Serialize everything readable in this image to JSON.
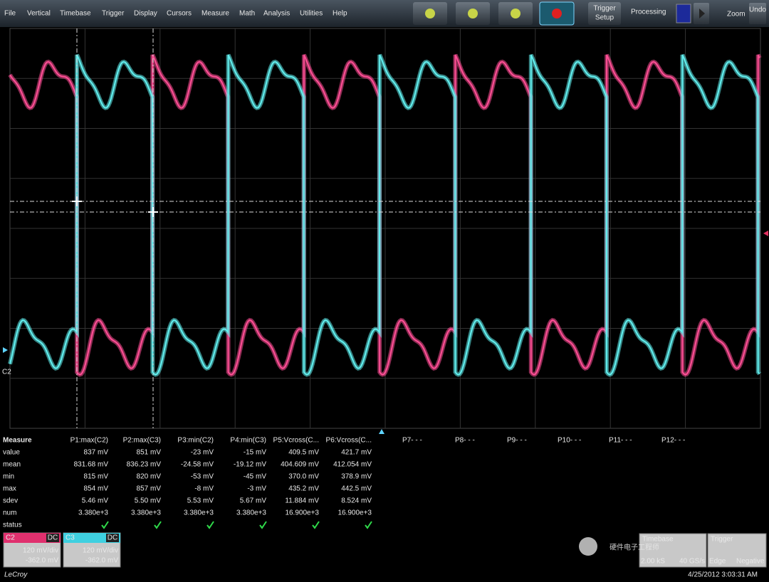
{
  "menu": [
    "File",
    "Vertical",
    "Timebase",
    "Trigger",
    "Display",
    "Cursors",
    "Measure",
    "Math",
    "Analysis",
    "Utilities",
    "Help"
  ],
  "toolbar": {
    "trigger_setup": [
      "Trigger",
      "Setup"
    ],
    "processing": "Processing",
    "zoom": "Zoom",
    "undo": "Undo"
  },
  "measure": {
    "header": [
      "Measure",
      "P1:max(C2)",
      "P2:max(C3)",
      "P3:min(C2)",
      "P4:min(C3)",
      "P5:Vcross(C...",
      "P6:Vcross(C..."
    ],
    "empty_slots": [
      "P7- - -",
      "P8- - -",
      "P9- - -",
      "P10- - -",
      "P11- - -",
      "P12- - -"
    ],
    "rows": [
      [
        "value",
        "837 mV",
        "851 mV",
        "-23 mV",
        "-15 mV",
        "409.5 mV",
        "421.7 mV"
      ],
      [
        "mean",
        "831.68 mV",
        "836.23 mV",
        "-24.58 mV",
        "-19.12 mV",
        "404.609 mV",
        "412.054 mV"
      ],
      [
        "min",
        "815 mV",
        "820 mV",
        "-53 mV",
        "-45 mV",
        "370.0 mV",
        "378.9 mV"
      ],
      [
        "max",
        "854 mV",
        "857 mV",
        "-8 mV",
        "-3 mV",
        "435.2 mV",
        "442.5 mV"
      ],
      [
        "sdev",
        "5.46 mV",
        "5.50 mV",
        "5.53 mV",
        "5.67 mV",
        "11.884 mV",
        "8.524 mV"
      ],
      [
        "num",
        "3.380e+3",
        "3.380e+3",
        "3.380e+3",
        "3.380e+3",
        "16.900e+3",
        "16.900e+3"
      ],
      [
        "status"
      ]
    ]
  },
  "channels": [
    {
      "name": "C2",
      "coupling": "DC",
      "scale": "120 mV/div",
      "offset": "-362.0 mV"
    },
    {
      "name": "C3",
      "coupling": "DC",
      "scale": "120 mV/div",
      "offset": "-362.0 mV"
    }
  ],
  "timebase": {
    "title": "Timebase",
    "samples": "2.00 kS",
    "rate": "40 GS/s"
  },
  "trigger": {
    "title": "Trigger",
    "mode": "Edge",
    "slope": "Negative"
  },
  "side_label": "C2",
  "watermark": "硬件电子工程师",
  "logo": "LeCroy",
  "timestamp": "4/25/2012 3:03:31 AM"
}
